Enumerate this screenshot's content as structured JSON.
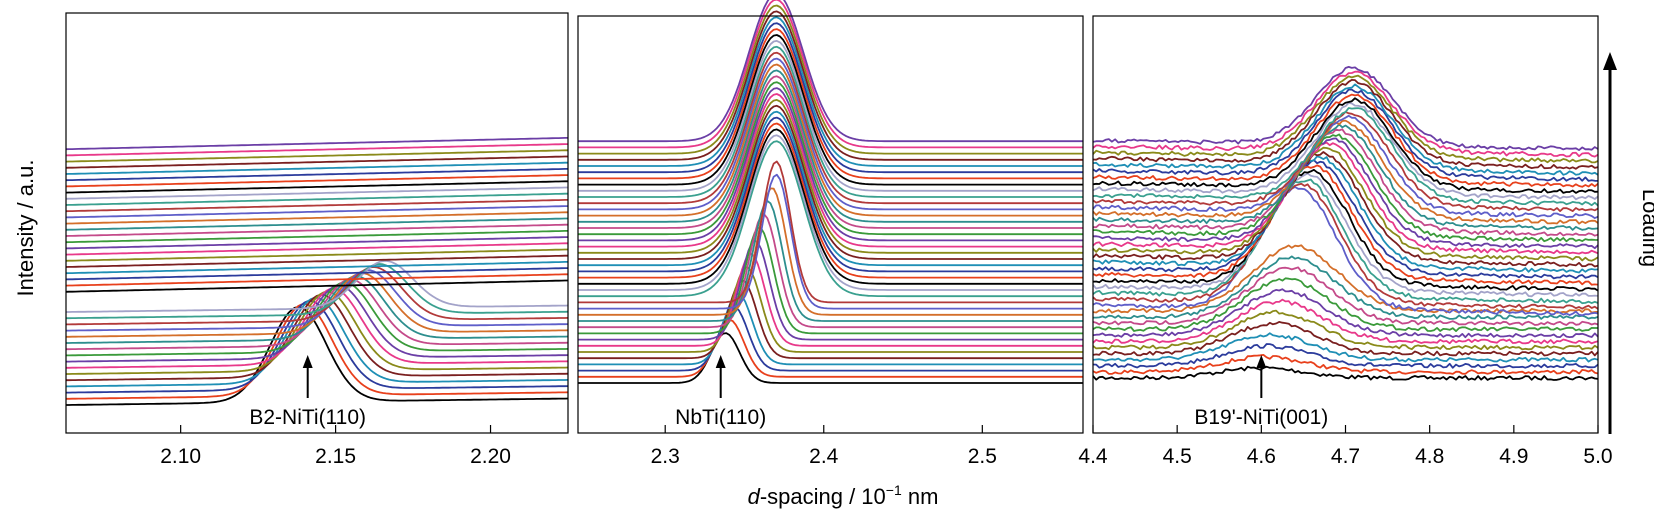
{
  "figure": {
    "ylabel": "Intensity / a.u.",
    "xlabel_prefix": "d",
    "xlabel_rest": "-spacing  / 10",
    "xlabel_exp": "−1",
    "xlabel_unit": " nm",
    "loading_label": "Loading"
  },
  "series_colors": [
    "#000000",
    "#e8401c",
    "#2b3b9c",
    "#1f8fb5",
    "#7a1f1f",
    "#8a8a1a",
    "#e8398a",
    "#6b3ea6",
    "#3a9a3a",
    "#c44a8a",
    "#2d8e8e",
    "#d46f2a",
    "#5e5ec9",
    "#b23a3a",
    "#3aa08f",
    "#a3a3c9"
  ],
  "chart_data": [
    {
      "type": "line",
      "panel": "B2-NiTi",
      "xlim": [
        2.063,
        2.225
      ],
      "x_ticks": [
        "2.10",
        "2.15",
        "2.20"
      ],
      "x_tick_values": [
        2.1,
        2.15,
        2.2
      ],
      "annotation": "B2-NiTi(110)",
      "annotation_x": 2.141,
      "n_series": 40,
      "peak_start_center": 2.138,
      "peak_end_center": 2.166,
      "peak_vanishes_after_series": 16
    },
    {
      "type": "line",
      "panel": "NbTi",
      "xlim": [
        2.245,
        2.5635
      ],
      "x_ticks": [
        "2.3",
        "2.4",
        "2.5"
      ],
      "x_tick_values": [
        2.3,
        2.4,
        2.5
      ],
      "annotation": "NbTi(110)",
      "annotation_x": 2.335,
      "n_series": 40,
      "peak_start_center": 2.338,
      "peak_end_center": 2.37,
      "peak_max_height_series_1_to_40": true
    },
    {
      "type": "line",
      "panel": "B19'-NiTi",
      "xlim": [
        4.4,
        5.0
      ],
      "x_ticks": [
        "4.4",
        "4.5",
        "4.6",
        "4.7",
        "4.8",
        "4.9",
        "5.0"
      ],
      "x_tick_values": [
        4.4,
        4.5,
        4.6,
        4.7,
        4.8,
        4.9,
        5.0
      ],
      "annotation": "B19'-NiTi(001)",
      "annotation_x": 4.6,
      "n_series": 40,
      "peak_start_center": 4.6,
      "peak_end_center": 4.71
    }
  ]
}
